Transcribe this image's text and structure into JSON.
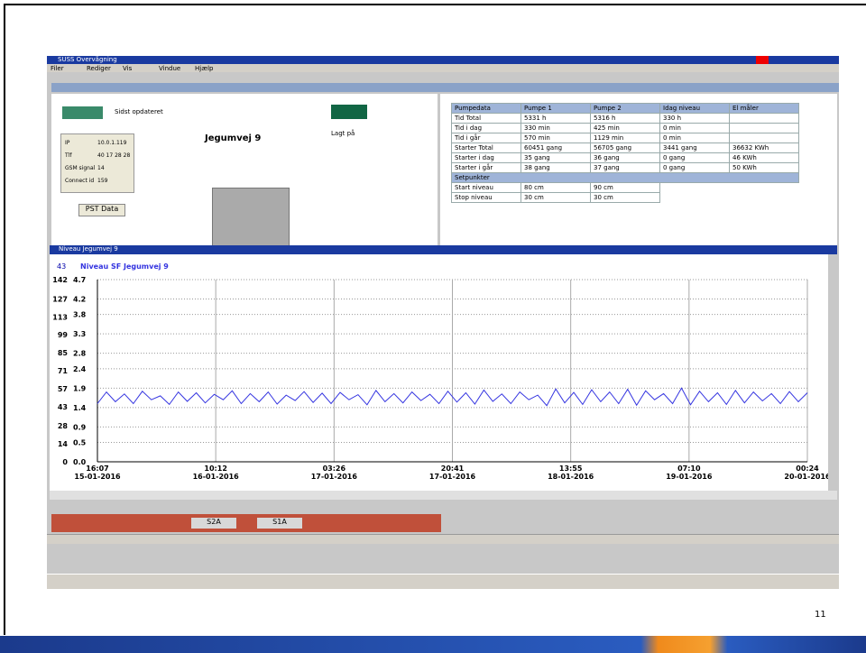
{
  "app_title": "SUSS Overvågning",
  "menu": [
    "Filer",
    "Rediger",
    "Vis",
    "Vindue",
    "Hjælp"
  ],
  "station": {
    "name": "Jegumvej 9",
    "last_updated_label": "Sidst opdateret",
    "status": "Lagt på",
    "button": "PST Data",
    "info": [
      [
        "IP",
        "10.0.1.119"
      ],
      [
        "Tlf",
        "40 17 28 28"
      ],
      [
        "GSM signal",
        "14"
      ],
      [
        "Connect id",
        "159"
      ]
    ]
  },
  "pump_table": {
    "headers": [
      "Pumpedata",
      "Pumpe 1",
      "Pumpe 2",
      "Idag niveau",
      "El måler"
    ],
    "rows": [
      [
        "Tid Total",
        "5331 h",
        "5316 h",
        "330 h",
        null
      ],
      [
        "Tid i dag",
        "330 min",
        "425 min",
        "0 min",
        null
      ],
      [
        "Tid i går",
        "570 min",
        "1129 min",
        "0 min",
        null
      ],
      [
        "Starter Total",
        "60451 gang",
        "56705 gang",
        "3441 gang",
        "36632 KWh"
      ],
      [
        "Starter i dag",
        "35 gang",
        "36 gang",
        "0 gang",
        "46 KWh"
      ],
      [
        "Starter i går",
        "38 gang",
        "37 gang",
        "0 gang",
        "50 KWh"
      ]
    ],
    "section": "Setpunkter",
    "setpoints": [
      [
        "Start niveau",
        "80 cm",
        "90 cm"
      ],
      [
        "Stop niveau",
        "30 cm",
        "30 cm"
      ]
    ]
  },
  "chart_window_title": "Niveau Jegumvej 9",
  "buttons": [
    "S2A",
    "S1A"
  ],
  "slide_number": "11",
  "chart_data": {
    "type": "line",
    "top_label": "43",
    "grid": true,
    "series": [
      {
        "name": "Niveau SF Jegumvej 9",
        "color": "#3434e0",
        "values": [
          1.5,
          1.8,
          1.55,
          1.75,
          1.5,
          1.82,
          1.6,
          1.7,
          1.48,
          1.8,
          1.56,
          1.78,
          1.52,
          1.74,
          1.6,
          1.83,
          1.5,
          1.76,
          1.55,
          1.8,
          1.49,
          1.72,
          1.58,
          1.81,
          1.53,
          1.77,
          1.5,
          1.79,
          1.6,
          1.73,
          1.47,
          1.84,
          1.55,
          1.76,
          1.52,
          1.8,
          1.58,
          1.74,
          1.5,
          1.82,
          1.54,
          1.78,
          1.49,
          1.85,
          1.56,
          1.75,
          1.5,
          1.8,
          1.6,
          1.72,
          1.45,
          1.88,
          1.52,
          1.79,
          1.48,
          1.86,
          1.55,
          1.8,
          1.5,
          1.87,
          1.46,
          1.83,
          1.6,
          1.76,
          1.5,
          1.9,
          1.47,
          1.82,
          1.55,
          1.78,
          1.48,
          1.84,
          1.52,
          1.8,
          1.57,
          1.76,
          1.5,
          1.81,
          1.55,
          1.78
        ]
      }
    ],
    "ylim": [
      0,
      4.7
    ],
    "yticks": [
      {
        "value": 0,
        "label": "0.0"
      },
      0.5,
      0.9,
      1.4,
      1.9,
      2.4,
      2.8,
      3.3,
      3.8,
      4.2,
      4.7
    ],
    "y2lim": [
      0,
      142
    ],
    "y2ticks": [
      0,
      14,
      28,
      43,
      57,
      71,
      85,
      99,
      113,
      127,
      142
    ],
    "x_labels": [
      [
        "16:07",
        "15-01-2016"
      ],
      [
        "10:12",
        "16-01-2016"
      ],
      [
        "03:26",
        "17-01-2016"
      ],
      [
        "20:41",
        "17-01-2016"
      ],
      [
        "13:55",
        "18-01-2016"
      ],
      [
        "07:10",
        "19-01-2016"
      ],
      [
        "00:24",
        "20-01-2016"
      ]
    ]
  }
}
